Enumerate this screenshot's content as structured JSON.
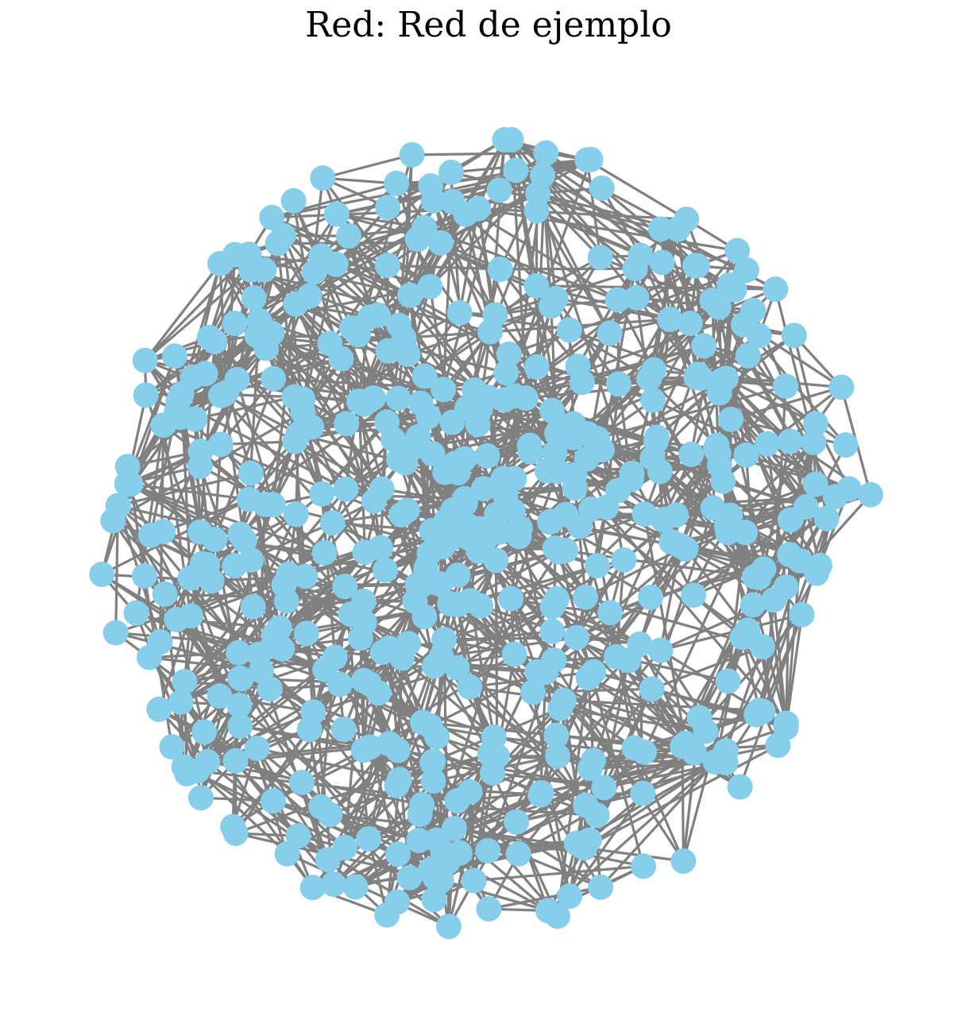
{
  "title": "Red: Red de ejemplo",
  "graph": {
    "layout": "force-directed",
    "node_color": "#87ceeb",
    "edge_color": "#808080",
    "node_count_estimate": 500
  }
}
